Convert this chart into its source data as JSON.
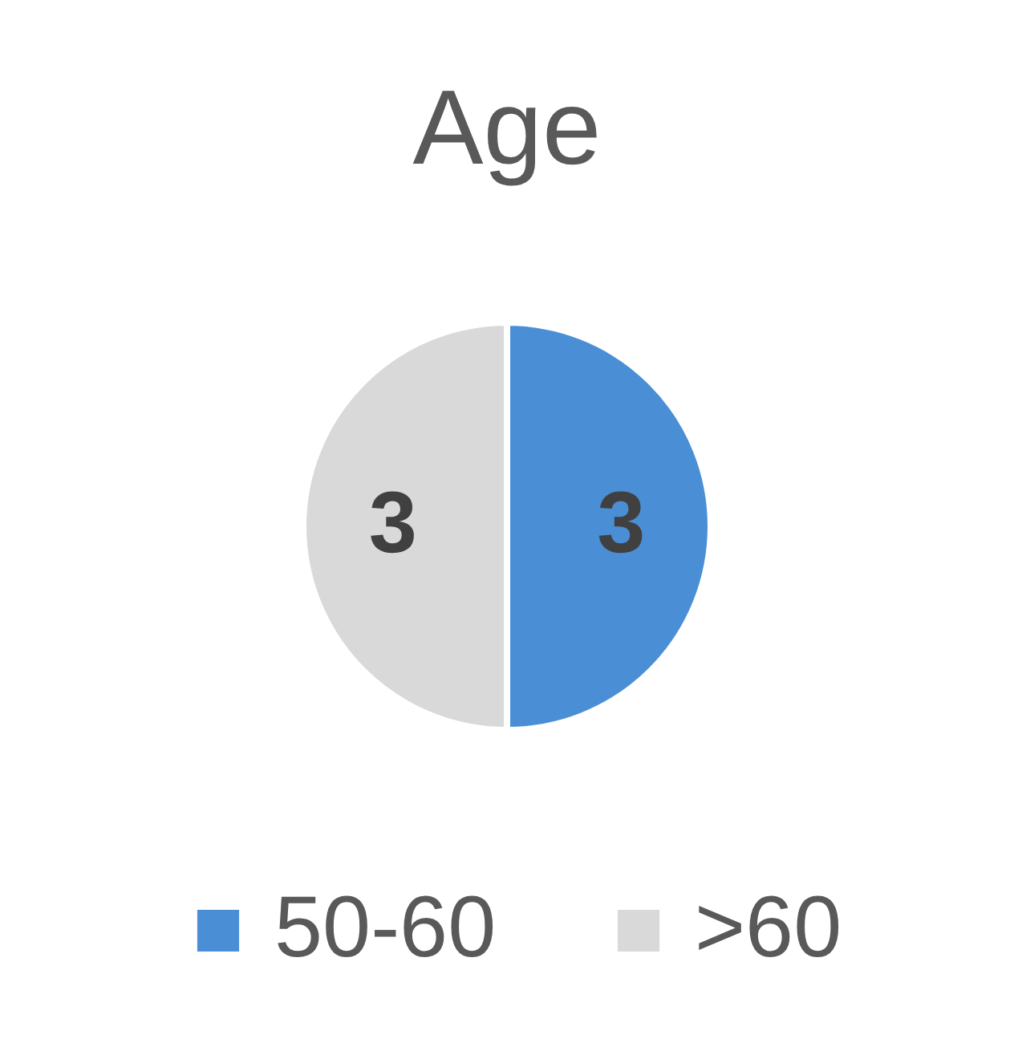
{
  "chart_data": {
    "type": "pie",
    "title": "Age",
    "categories": [
      "50-60",
      ">60"
    ],
    "values": [
      3,
      3
    ],
    "colors": [
      "#4a8fd6",
      "#d9d9d9"
    ],
    "data_labels": true,
    "legend": "bottom"
  }
}
